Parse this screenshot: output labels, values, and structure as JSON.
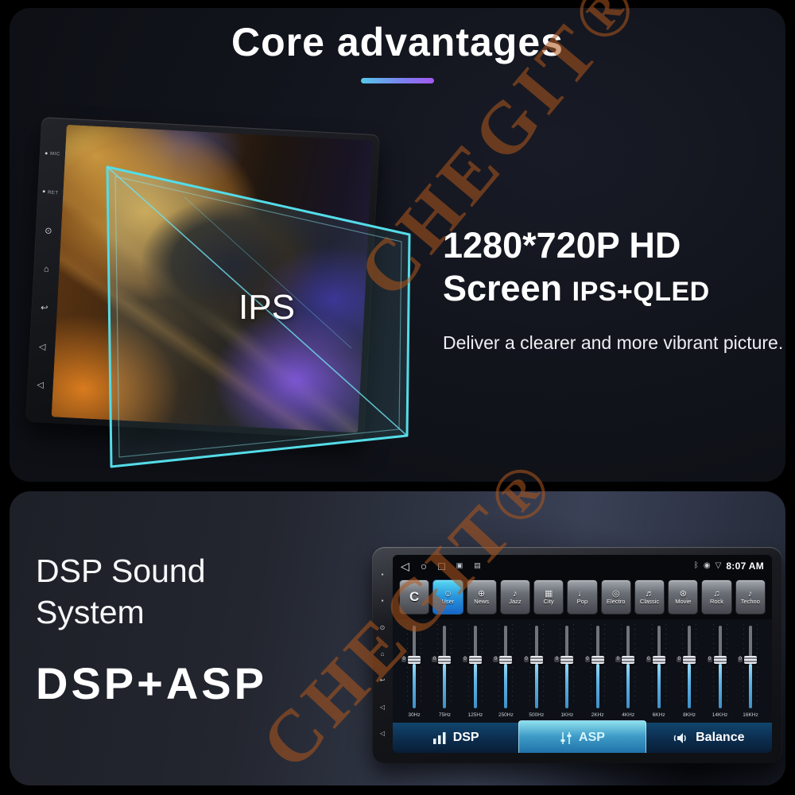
{
  "watermark": {
    "text": "CHEGIT®",
    "color": "#b0571c"
  },
  "colors": {
    "underline_from": "#55c8e8",
    "underline_to": "#a558f0",
    "glass_accent": "#54dce8",
    "preset_active": "#2a9ade",
    "tab_active": "#3f9cc8"
  },
  "hd": {
    "title": "Core advantages",
    "headline1": "1280*720P HD",
    "headline2": "Screen",
    "headline_suffix": "IPS+QLED",
    "description": "Deliver a clearer and more vibrant picture.",
    "device": {
      "screen_label": "IPS",
      "bezel": [
        {
          "name": "mic-dot-icon",
          "glyph": "•",
          "label": "MIC"
        },
        {
          "name": "reset-dot-icon",
          "glyph": "•",
          "label": "RET"
        },
        {
          "name": "power-icon",
          "glyph": "⊙"
        },
        {
          "name": "home-icon",
          "glyph": "⌂"
        },
        {
          "name": "back-icon",
          "glyph": "↩"
        },
        {
          "name": "volume-up-icon",
          "glyph": "◁"
        },
        {
          "name": "volume-down-icon",
          "glyph": "◁"
        }
      ]
    }
  },
  "dsp": {
    "heading1": "DSP Sound",
    "heading2": "System",
    "subtitle": "DSP+ASP",
    "radio": {
      "time": "8:07 AM",
      "status_left": [
        {
          "name": "back-nav-icon",
          "glyph": "◁",
          "cls": "nav"
        },
        {
          "name": "home-nav-icon",
          "glyph": "○",
          "cls": "nav"
        },
        {
          "name": "recents-nav-icon",
          "glyph": "□",
          "cls": "nav"
        },
        {
          "name": "screenshot-icon",
          "glyph": "▣",
          "cls": "mini"
        },
        {
          "name": "camera-icon",
          "glyph": "▤",
          "cls": "mini"
        }
      ],
      "status_right": [
        {
          "name": "bluetooth-icon",
          "glyph": "ᛒ",
          "cls": "mini"
        },
        {
          "name": "location-icon",
          "glyph": "◉",
          "cls": "mini"
        },
        {
          "name": "gps-triangle-icon",
          "glyph": "▽",
          "cls": "mini"
        }
      ],
      "bezel": [
        {
          "name": "mic-dot-icon",
          "glyph": "▪"
        },
        {
          "name": "reset-dot-icon",
          "glyph": "▪"
        },
        {
          "name": "power-icon",
          "glyph": "⊙"
        },
        {
          "name": "home-icon",
          "glyph": "⌂"
        },
        {
          "name": "back-icon",
          "glyph": "↩"
        },
        {
          "name": "volume-up-icon",
          "glyph": "◁"
        },
        {
          "name": "volume-down-icon",
          "glyph": "◁"
        }
      ],
      "presets": [
        {
          "label": "C",
          "letter": true
        },
        {
          "label": "User",
          "icon": "user-icon",
          "active": true
        },
        {
          "label": "News",
          "icon": "news-icon"
        },
        {
          "label": "Jazz",
          "icon": "jazz-icon"
        },
        {
          "label": "City",
          "icon": "city-icon"
        },
        {
          "label": "Pop",
          "icon": "pop-icon"
        },
        {
          "label": "Electro",
          "icon": "electro-icon"
        },
        {
          "label": "Classic",
          "icon": "classic-icon"
        },
        {
          "label": "Movie",
          "icon": "movie-icon"
        },
        {
          "label": "Rock",
          "icon": "rock-icon"
        },
        {
          "label": "Techno",
          "icon": "techno-icon"
        }
      ],
      "icon_glyphs": {
        "user-icon": "☺",
        "news-icon": "⊕",
        "jazz-icon": "♪",
        "city-icon": "▦",
        "pop-icon": "♩",
        "electro-icon": "◎",
        "classic-icon": "♬",
        "movie-icon": "⊛",
        "rock-icon": "♫",
        "techno-icon": "♪"
      },
      "eq_bands": [
        {
          "freq": "30Hz",
          "value": "0"
        },
        {
          "freq": "75Hz",
          "value": "0"
        },
        {
          "freq": "125Hz",
          "value": "0"
        },
        {
          "freq": "250Hz",
          "value": "0"
        },
        {
          "freq": "500Hz",
          "value": "0"
        },
        {
          "freq": "1KHz",
          "value": "0"
        },
        {
          "freq": "2KHz",
          "value": "0"
        },
        {
          "freq": "4KHz",
          "value": "0"
        },
        {
          "freq": "6KHz",
          "value": "0"
        },
        {
          "freq": "8KHz",
          "value": "0"
        },
        {
          "freq": "14KHz",
          "value": "0"
        },
        {
          "freq": "16KHz",
          "value": "0"
        }
      ],
      "tabs": [
        {
          "label": "DSP",
          "icon": "eq-bars-icon"
        },
        {
          "label": "ASP",
          "icon": "sliders-icon",
          "active": true
        },
        {
          "label": "Balance",
          "icon": "speaker-icon"
        }
      ]
    }
  }
}
